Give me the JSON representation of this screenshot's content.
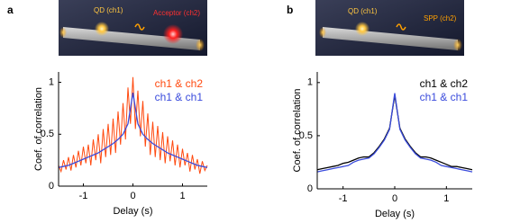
{
  "chart_data": [
    {
      "type": "line",
      "panel_label": "a",
      "inset_labels": [
        "QD (ch1)",
        "Acceptor (ch2)"
      ],
      "xlabel": "Delay (s)",
      "ylabel": "Coef. of correlation",
      "xlim": [
        -1.5,
        1.5
      ],
      "ylim": [
        0,
        1.1
      ],
      "xticks": [
        -1,
        0,
        1
      ],
      "yticks": [
        0,
        0.5,
        1
      ],
      "legend": "upper right",
      "series": [
        {
          "name": "ch1 & ch2",
          "color": "#ff4a10",
          "x": [
            -1.5,
            -1.45,
            -1.4,
            -1.35,
            -1.3,
            -1.25,
            -1.2,
            -1.15,
            -1.1,
            -1.05,
            -1.0,
            -0.95,
            -0.9,
            -0.85,
            -0.8,
            -0.75,
            -0.7,
            -0.65,
            -0.6,
            -0.55,
            -0.5,
            -0.45,
            -0.4,
            -0.35,
            -0.3,
            -0.25,
            -0.2,
            -0.15,
            -0.1,
            -0.05,
            0,
            0.05,
            0.1,
            0.15,
            0.2,
            0.25,
            0.3,
            0.35,
            0.4,
            0.45,
            0.5,
            0.55,
            0.6,
            0.65,
            0.7,
            0.75,
            0.8,
            0.85,
            0.9,
            0.95,
            1.0,
            1.05,
            1.1,
            1.15,
            1.2,
            1.25,
            1.3,
            1.35,
            1.4,
            1.45,
            1.5
          ],
          "values": [
            0.2,
            0.14,
            0.25,
            0.16,
            0.28,
            0.15,
            0.3,
            0.18,
            0.34,
            0.2,
            0.38,
            0.22,
            0.4,
            0.2,
            0.45,
            0.25,
            0.5,
            0.22,
            0.55,
            0.28,
            0.6,
            0.3,
            0.65,
            0.32,
            0.72,
            0.4,
            0.8,
            0.45,
            0.95,
            0.6,
            1.05,
            0.55,
            0.92,
            0.48,
            0.82,
            0.38,
            0.7,
            0.3,
            0.62,
            0.28,
            0.58,
            0.25,
            0.52,
            0.22,
            0.48,
            0.24,
            0.44,
            0.2,
            0.4,
            0.18,
            0.36,
            0.2,
            0.32,
            0.14,
            0.3,
            0.16,
            0.26,
            0.12,
            0.24,
            0.15,
            0.2
          ]
        },
        {
          "name": "ch1 & ch1",
          "color": "#3a4bdc",
          "x": [
            -1.5,
            -1.4,
            -1.3,
            -1.2,
            -1.1,
            -1.0,
            -0.9,
            -0.8,
            -0.7,
            -0.6,
            -0.5,
            -0.4,
            -0.3,
            -0.2,
            -0.1,
            0,
            0.1,
            0.2,
            0.3,
            0.4,
            0.5,
            0.6,
            0.7,
            0.8,
            0.9,
            1.0,
            1.1,
            1.2,
            1.3,
            1.4,
            1.5
          ],
          "values": [
            0.18,
            0.19,
            0.2,
            0.22,
            0.24,
            0.26,
            0.28,
            0.3,
            0.32,
            0.35,
            0.38,
            0.41,
            0.45,
            0.5,
            0.6,
            0.9,
            0.6,
            0.5,
            0.45,
            0.41,
            0.38,
            0.35,
            0.32,
            0.3,
            0.28,
            0.26,
            0.24,
            0.22,
            0.2,
            0.19,
            0.18
          ]
        }
      ]
    },
    {
      "type": "line",
      "panel_label": "b",
      "inset_labels": [
        "QD (ch1)",
        "SPP (ch2)"
      ],
      "xlabel": "Delay (s)",
      "ylabel": "Coef. of correlation",
      "xlim": [
        -1.5,
        1.5
      ],
      "ylim": [
        0,
        1.1
      ],
      "xticks": [
        -1,
        0,
        1
      ],
      "yticks": [
        0,
        0.5,
        1
      ],
      "legend": "upper right",
      "series": [
        {
          "name": "ch1 & ch2",
          "color": "#000000",
          "x": [
            -1.5,
            -1.4,
            -1.3,
            -1.2,
            -1.1,
            -1.0,
            -0.9,
            -0.8,
            -0.7,
            -0.6,
            -0.5,
            -0.4,
            -0.3,
            -0.2,
            -0.1,
            0,
            0.1,
            0.2,
            0.3,
            0.4,
            0.5,
            0.6,
            0.7,
            0.8,
            0.9,
            1.0,
            1.1,
            1.2,
            1.3,
            1.4,
            1.5
          ],
          "values": [
            0.18,
            0.19,
            0.2,
            0.21,
            0.22,
            0.24,
            0.25,
            0.27,
            0.29,
            0.3,
            0.3,
            0.34,
            0.4,
            0.47,
            0.57,
            0.88,
            0.57,
            0.47,
            0.4,
            0.34,
            0.3,
            0.3,
            0.29,
            0.27,
            0.25,
            0.23,
            0.21,
            0.21,
            0.2,
            0.19,
            0.18
          ]
        },
        {
          "name": "ch1 & ch1",
          "color": "#3a4bdc",
          "x": [
            -1.5,
            -1.4,
            -1.3,
            -1.2,
            -1.1,
            -1.0,
            -0.9,
            -0.8,
            -0.7,
            -0.6,
            -0.5,
            -0.4,
            -0.3,
            -0.2,
            -0.1,
            0,
            0.1,
            0.2,
            0.3,
            0.4,
            0.5,
            0.6,
            0.7,
            0.8,
            0.9,
            1.0,
            1.1,
            1.2,
            1.3,
            1.4,
            1.5
          ],
          "values": [
            0.16,
            0.17,
            0.18,
            0.19,
            0.2,
            0.21,
            0.22,
            0.25,
            0.27,
            0.28,
            0.29,
            0.33,
            0.39,
            0.46,
            0.56,
            0.9,
            0.56,
            0.46,
            0.39,
            0.33,
            0.29,
            0.28,
            0.27,
            0.25,
            0.22,
            0.21,
            0.2,
            0.19,
            0.18,
            0.17,
            0.16
          ]
        }
      ]
    }
  ]
}
